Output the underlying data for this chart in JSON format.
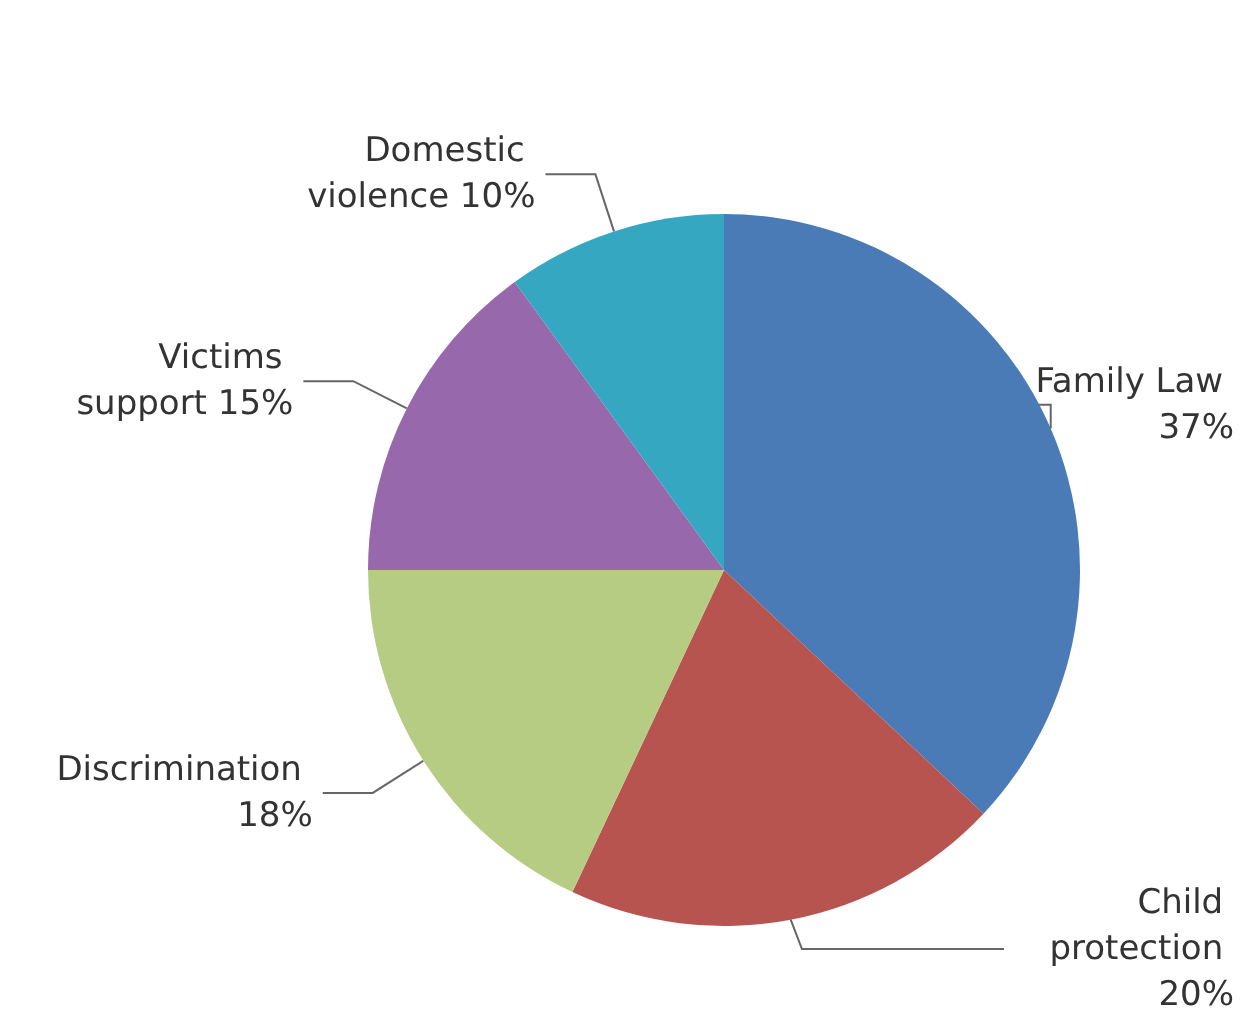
{
  "chart_data": {
    "type": "pie",
    "categories": [
      "Family Law",
      "Child protection",
      "Discrimination",
      "Victims support",
      "Domestic violence"
    ],
    "values": [
      37,
      20,
      18,
      15,
      10
    ],
    "value_labels": [
      "37%",
      "20%",
      "18%",
      "15%",
      "10%"
    ],
    "colors": [
      "#4a7bb7",
      "#b85450",
      "#b5cc82",
      "#9768ab",
      "#36a7c1"
    ]
  }
}
